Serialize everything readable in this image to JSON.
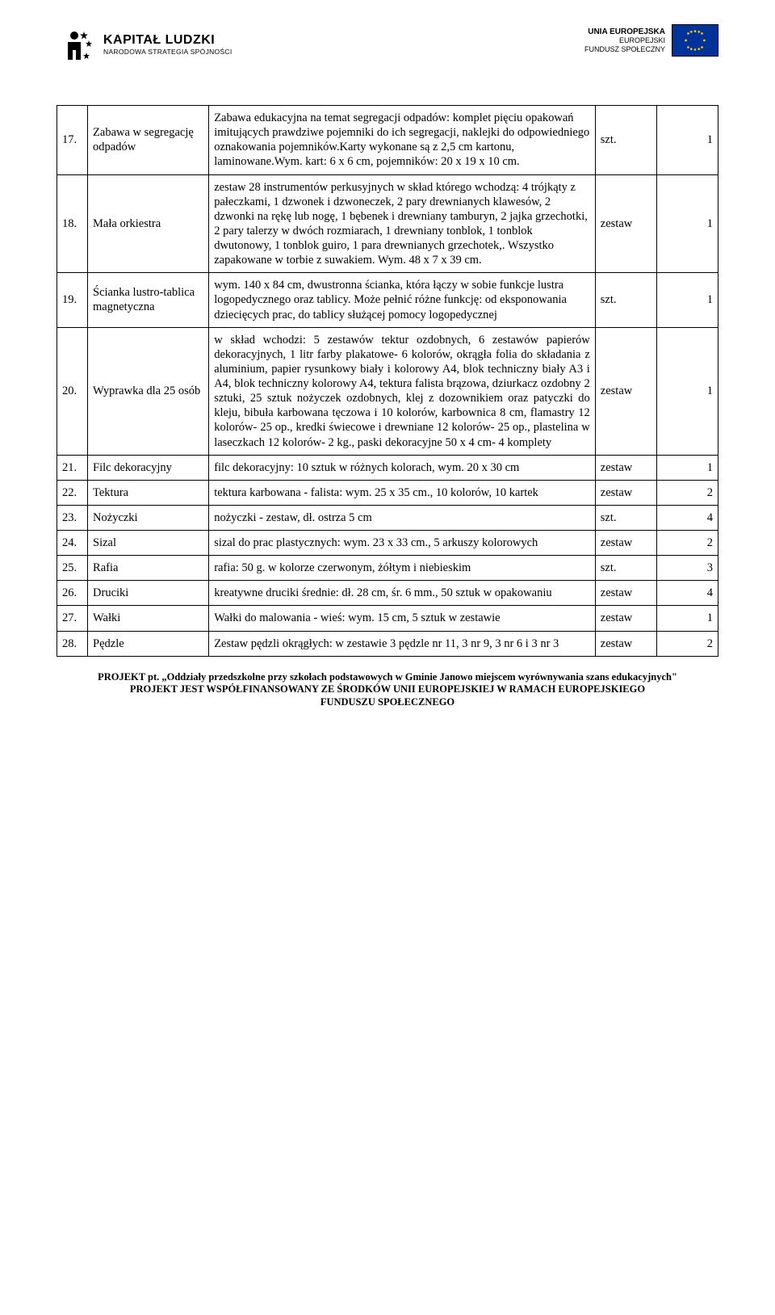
{
  "header": {
    "left_title": "KAPITAŁ LUDZKI",
    "left_sub": "NARODOWA STRATEGIA SPÓJNOŚCI",
    "right_line1": "UNIA EUROPEJSKA",
    "right_line2": "EUROPEJSKI",
    "right_line3": "FUNDUSZ SPOŁECZNY"
  },
  "rows": [
    {
      "n": "17.",
      "name": "Zabawa w segregację odpadów",
      "desc": "Zabawa edukacyjna na temat segregacji odpadów: komplet pięciu opakowań imitujących prawdziwe pojemniki do ich segregacji, naklejki do odpowiedniego oznakowania pojemników.Karty wykonane są z 2,5 cm kartonu, laminowane.Wym. kart: 6 x 6 cm, pojemników: 20 x 19 x 10 cm.",
      "unit": "szt.",
      "qty": "1",
      "align": "desc-left"
    },
    {
      "n": "18.",
      "name": "Mała orkiestra",
      "desc": "zestaw 28 instrumentów perkusyjnych w skład którego wchodzą: 4 trójkąty z pałeczkami, 1 dzwonek i dzwoneczek, 2 pary drewnianych klawesów, 2 dzwonki na rękę lub nogę, 1 bębenek i drewniany tamburyn, 2 jajka grzechotki, 2 pary talerzy w dwóch rozmiarach, 1 drewniany tonblok, 1 tonblok dwutonowy, 1 tonblok guiro, 1 para drewnianych grzechotek,. Wszystko zapakowane w torbie z suwakiem. Wym. 48 x 7 x 39 cm.",
      "unit": "zestaw",
      "qty": "1",
      "align": "desc-left"
    },
    {
      "n": "19.",
      "name": "Ścianka lustro-tablica magnetyczna",
      "desc": "wym. 140 x 84 cm, dwustronna ścianka, która łączy w sobie funkcje lustra logopedycznego oraz tablicy. Może pełnić różne funkcję: od eksponowania dziecięcych prac, do tablicy służącej pomocy logopedycznej",
      "unit": "szt.",
      "qty": "1",
      "align": "desc-left"
    },
    {
      "n": "20.",
      "name": "Wyprawka dla 25 osób",
      "desc": "w skład wchodzi: 5 zestawów tektur ozdobnych, 6 zestawów papierów dekoracyjnych, 1 litr farby plakatowe- 6 kolorów, okrągła folia do składania z aluminium, papier rysunkowy biały i kolorowy A4, blok techniczny biały A3 i A4, blok techniczny kolorowy A4, tektura falista brązowa, dziurkacz ozdobny 2 sztuki, 25 sztuk nożyczek ozdobnych, klej z dozownikiem oraz patyczki do kleju, bibuła karbowana tęczowa i 10 kolorów, karbownica 8 cm, flamastry 12 kolorów- 25 op., kredki świecowe i drewniane 12 kolorów- 25 op., plastelina w laseczkach 12 kolorów- 2 kg., paski dekoracyjne 50 x 4 cm- 4 komplety",
      "unit": "zestaw",
      "qty": "1",
      "align": "desc"
    },
    {
      "n": "21.",
      "name": "Filc dekoracyjny",
      "desc": "filc dekoracyjny: 10 sztuk w różnych kolorach, wym. 20 x 30 cm",
      "unit": "zestaw",
      "qty": "1",
      "align": "desc-left"
    },
    {
      "n": "22.",
      "name": "Tektura",
      "desc": "tektura karbowana - falista: wym. 25 x 35 cm., 10 kolorów, 10 kartek",
      "unit": "zestaw",
      "qty": "2",
      "align": "desc-left"
    },
    {
      "n": "23.",
      "name": "Nożyczki",
      "desc": "nożyczki - zestaw, dł. ostrza 5 cm",
      "unit": "szt.",
      "qty": "4",
      "align": "desc-left"
    },
    {
      "n": "24.",
      "name": "Sizal",
      "desc": "sizal do prac plastycznych: wym. 23 x 33 cm., 5 arkuszy kolorowych",
      "unit": "zestaw",
      "qty": "2",
      "align": "desc-left"
    },
    {
      "n": "25.",
      "name": "Rafia",
      "desc": "rafia: 50 g. w kolorze czerwonym, żółtym i niebieskim",
      "unit": "szt.",
      "qty": "3",
      "align": "desc-left"
    },
    {
      "n": "26.",
      "name": "Druciki",
      "desc": "kreatywne druciki średnie: dł. 28 cm, śr. 6 mm., 50 sztuk w opakowaniu",
      "unit": "zestaw",
      "qty": "4",
      "align": "desc-left"
    },
    {
      "n": "27.",
      "name": "Wałki",
      "desc": "Wałki do malowania - wieś: wym. 15 cm, 5 sztuk w zestawie",
      "unit": "zestaw",
      "qty": "1",
      "align": "desc-left"
    },
    {
      "n": "28.",
      "name": "Pędzle",
      "desc": "Zestaw pędzli okrągłych: w zestawie 3 pędzle nr 11, 3 nr 9, 3 nr 6 i 3 nr 3",
      "unit": "zestaw",
      "qty": "2",
      "align": "desc-left"
    }
  ],
  "footer": {
    "l1": "PROJEKT pt. „Oddziały przedszkolne przy szkołach podstawowych w Gminie Janowo miejscem wyrównywania szans edukacyjnych\"",
    "l2": "PROJEKT JEST WSPÓŁFINANSOWANY ZE ŚRODKÓW UNII EUROPEJSKIEJ W RAMACH EUROPEJSKIEGO",
    "l3": "FUNDUSZU SPOŁECZNEGO"
  },
  "colors": {
    "text": "#000000",
    "background": "#ffffff",
    "eu_blue": "#003399",
    "eu_gold": "#ffcc00"
  }
}
